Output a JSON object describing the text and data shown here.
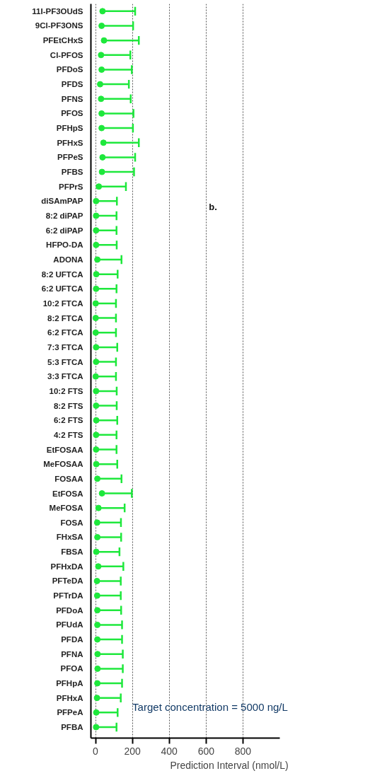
{
  "chart_data": {
    "type": "scatter",
    "orientation": "horizontal",
    "xlabel": "Prediction Interval  (nmol/L)",
    "annotations": [
      "b.",
      "Target concentration = 5000 ng/L"
    ],
    "categories": [
      "11I-PF3OUdS",
      "9Cl-PF3ONS",
      "PFEtCHxS",
      "Cl-PFOS",
      "PFDoS",
      "PFDS",
      "PFNS",
      "PFOS",
      "PFHpS",
      "PFHxS",
      "PFPeS",
      "PFBS",
      "PFPrS",
      "diSAmPAP",
      "8:2 diPAP",
      "6:2 diPAP",
      "HFPO-DA",
      "ADONA",
      "8:2 UFTCA",
      "6:2 UFTCA",
      "10:2 FTCA",
      "8:2 FTCA",
      "6:2 FTCA",
      "7:3 FTCA",
      "5:3 FTCA",
      "3:3 FTCA",
      "10:2 FTS",
      "8:2 FTS",
      "6:2 FTS",
      "4:2 FTS",
      "EtFOSAA",
      "MeFOSAA",
      "FOSAA",
      "EtFOSA",
      "MeFOSA",
      "FOSA",
      "FHxSA",
      "FBSA",
      "PFHxDA",
      "PFTeDA",
      "PFTrDA",
      "PFDoA",
      "PFUdA",
      "PFDA",
      "PFNA",
      "PFOA",
      "PFHpA",
      "PFHxA",
      "PFPeA",
      "PFBA"
    ],
    "series": [
      {
        "color": "#1ee83c",
        "values": [
          38,
          33,
          46,
          30,
          33,
          25,
          30,
          33,
          33,
          43,
          38,
          35,
          18,
          3,
          3,
          3,
          3,
          10,
          4,
          3,
          1,
          1,
          1,
          3,
          3,
          1,
          3,
          3,
          4,
          3,
          3,
          4,
          10,
          35,
          16,
          9,
          10,
          4,
          15,
          8,
          9,
          10,
          10,
          10,
          11,
          11,
          10,
          8,
          4,
          3
        ],
        "errors": [
          [
            38,
            215
          ],
          [
            33,
            204
          ],
          [
            46,
            235
          ],
          [
            30,
            189
          ],
          [
            33,
            197
          ],
          [
            25,
            181
          ],
          [
            30,
            191
          ],
          [
            33,
            206
          ],
          [
            33,
            203
          ],
          [
            43,
            235
          ],
          [
            38,
            215
          ],
          [
            35,
            209
          ],
          [
            18,
            165
          ],
          [
            3,
            116
          ],
          [
            3,
            114
          ],
          [
            3,
            114
          ],
          [
            3,
            115
          ],
          [
            10,
            141
          ],
          [
            4,
            120
          ],
          [
            3,
            114
          ],
          [
            1,
            111
          ],
          [
            1,
            111
          ],
          [
            1,
            111
          ],
          [
            3,
            118
          ],
          [
            3,
            111
          ],
          [
            1,
            111
          ],
          [
            3,
            115
          ],
          [
            3,
            115
          ],
          [
            4,
            118
          ],
          [
            3,
            114
          ],
          [
            3,
            114
          ],
          [
            4,
            118
          ],
          [
            10,
            141
          ],
          [
            35,
            197
          ],
          [
            16,
            158
          ],
          [
            9,
            138
          ],
          [
            10,
            139
          ],
          [
            4,
            130
          ],
          [
            15,
            151
          ],
          [
            8,
            137
          ],
          [
            9,
            137
          ],
          [
            10,
            139
          ],
          [
            10,
            144
          ],
          [
            10,
            144
          ],
          [
            11,
            148
          ],
          [
            11,
            148
          ],
          [
            10,
            144
          ],
          [
            8,
            137
          ],
          [
            4,
            120
          ],
          [
            3,
            114
          ]
        ]
      }
    ],
    "xlim": [
      -25,
      1000
    ],
    "xticks": [
      0,
      200,
      400,
      600,
      800
    ],
    "grid": "x",
    "marker": "circle"
  }
}
